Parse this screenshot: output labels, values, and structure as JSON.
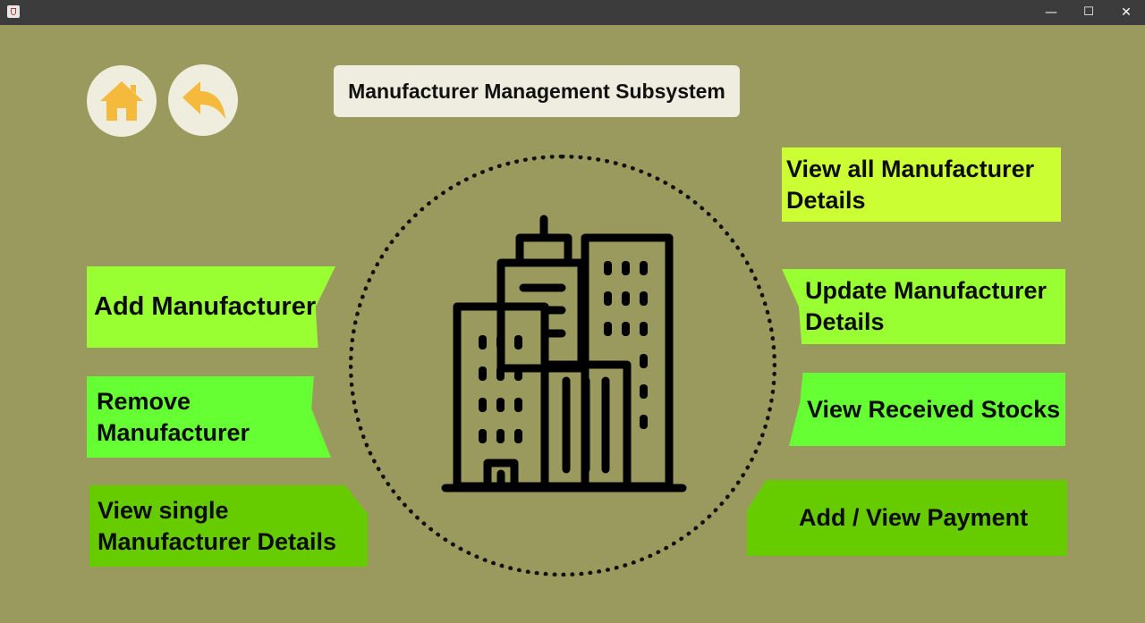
{
  "window": {
    "minimize_glyph": "—",
    "maximize_glyph": "☐",
    "close_glyph": "✕"
  },
  "nav": {
    "home_icon": "home-icon",
    "back_icon": "back-arrow-icon"
  },
  "header": {
    "title": "Manufacturer Management Subsystem"
  },
  "left_menu": {
    "add": "Add Manufacturer",
    "remove_line1": "Remove",
    "remove_line2": "Manufacturer",
    "view_single_line1": "View single",
    "view_single_line2": "Manufacturer Details"
  },
  "right_menu": {
    "view_all_line1": "View all Manufacturer",
    "view_all_line2": "Details",
    "update_line1": "Update Manufacturer",
    "update_line2": "Details",
    "received_stocks": "View Received Stocks",
    "payment": "Add / View Payment"
  },
  "center": {
    "icon": "office-building-icon"
  },
  "colors": {
    "background": "#9b9a5e",
    "icon_accent": "#f5b93c",
    "button_lime": "#ccff33",
    "button_light_green": "#99ff33",
    "button_green": "#66ff33",
    "button_dark_green": "#66cc00"
  }
}
